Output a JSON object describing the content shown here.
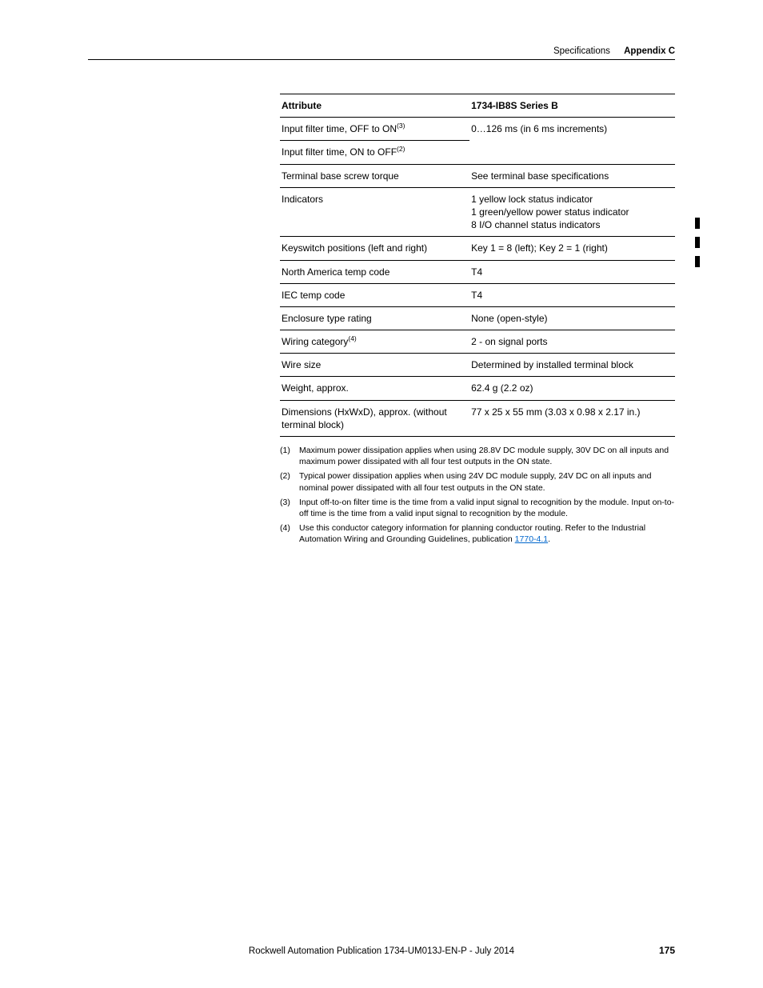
{
  "header": {
    "section": "Specifications",
    "appendix": "Appendix C"
  },
  "table": {
    "col1_header": "Attribute",
    "col2_header": "1734-IB8S Series B",
    "rows": [
      {
        "attr": "Input filter time, OFF to ON",
        "sup": "(3)",
        "val": "0…126 ms (in 6 ms increments)",
        "rowspan_val": 2
      },
      {
        "attr": "Input filter time, ON to OFF",
        "sup": "(2)",
        "val": null
      },
      {
        "attr": "Terminal base screw torque",
        "sup": "",
        "val": "See terminal base specifications"
      },
      {
        "attr": "Indicators",
        "sup": "",
        "val": "1 yellow lock status indicator\n1 green/yellow power status indicator\n8 I/O channel status indicators"
      },
      {
        "attr": "Keyswitch positions (left and right)",
        "sup": "",
        "val": "Key 1 = 8 (left); Key 2 = 1 (right)"
      },
      {
        "attr": "North America temp code",
        "sup": "",
        "val": "T4"
      },
      {
        "attr": "IEC temp code",
        "sup": "",
        "val": "T4"
      },
      {
        "attr": "Enclosure type rating",
        "sup": "",
        "val": "None (open-style)"
      },
      {
        "attr": "Wiring category",
        "sup": "(4)",
        "val": "2 - on signal ports"
      },
      {
        "attr": "Wire size",
        "sup": "",
        "val": "Determined by installed terminal block"
      },
      {
        "attr": "Weight, approx.",
        "sup": "",
        "val": "62.4 g (2.2 oz)"
      },
      {
        "attr": "Dimensions (HxWxD), approx. (without terminal block)",
        "sup": "",
        "val": "77 x 25 x 55 mm (3.03 x 0.98 x 2.17 in.)"
      }
    ]
  },
  "footnotes": [
    {
      "num": "(1)",
      "text": "Maximum power dissipation applies when using 28.8V DC module supply, 30V DC on all inputs and maximum power dissipated with all four test outputs in the ON state."
    },
    {
      "num": "(2)",
      "text": "Typical power dissipation applies when using 24V DC module supply, 24V DC on all inputs and nominal power dissipated with all four test outputs in the ON state."
    },
    {
      "num": "(3)",
      "text": "Input off-to-on filter time is the time from a valid input signal to recognition by the module. Input on-to-off time is the time from a valid input signal to recognition by the module."
    },
    {
      "num": "(4)",
      "text_pre": "Use this conductor category information for planning conductor routing. Refer to the Industrial Automation Wiring and Grounding Guidelines, publication ",
      "link": "1770-4.1",
      "text_post": "."
    }
  ],
  "footer": {
    "pub": "Rockwell Automation Publication 1734-UM013J-EN-P - July 2014",
    "page": "175"
  }
}
